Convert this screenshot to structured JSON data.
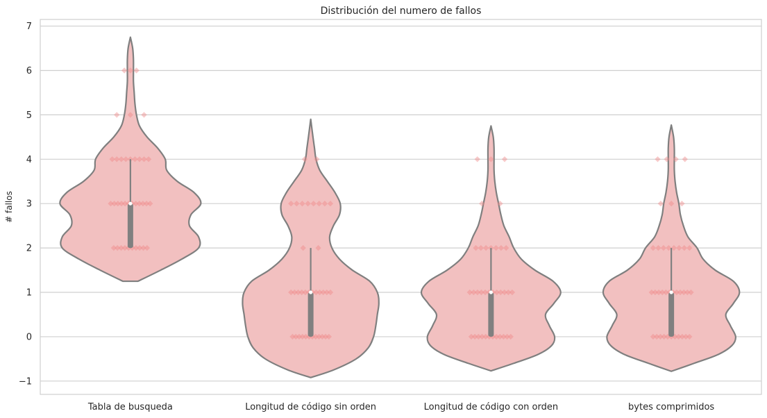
{
  "chart_data": {
    "type": "violin",
    "title": "Distribución del numero de fallos",
    "xlabel": "",
    "ylabel": "# fallos",
    "ylim": [
      -1.3,
      7.15
    ],
    "yticks": [
      -1,
      0,
      1,
      2,
      3,
      4,
      5,
      6,
      7
    ],
    "ytick_labels": [
      "−1",
      "0",
      "1",
      "2",
      "3",
      "4",
      "5",
      "6",
      "7"
    ],
    "grid": true,
    "colors": {
      "violin_fill": "#f2c0c0",
      "violin_edge": "#7f7f7f",
      "points": "#f08a8a",
      "box": "#808080",
      "median": "#ffffff",
      "grid": "#cfcfcf",
      "frame": "#cfcfcf"
    },
    "categories": [
      "Tabla de busqueda",
      "Longitud de código sin orden",
      "Longitud de código con orden",
      "bytes comprimidos"
    ],
    "violins": [
      {
        "category": "Tabla de busqueda",
        "profile": [
          [
            1.25,
            0.1
          ],
          [
            1.5,
            0.4
          ],
          [
            1.75,
            0.68
          ],
          [
            2.0,
            0.9
          ],
          [
            2.25,
            0.9
          ],
          [
            2.5,
            0.78
          ],
          [
            2.75,
            0.8
          ],
          [
            3.0,
            0.93
          ],
          [
            3.25,
            0.84
          ],
          [
            3.5,
            0.62
          ],
          [
            3.75,
            0.48
          ],
          [
            4.0,
            0.46
          ],
          [
            4.25,
            0.36
          ],
          [
            4.5,
            0.22
          ],
          [
            4.75,
            0.12
          ],
          [
            5.0,
            0.08
          ],
          [
            5.25,
            0.06
          ],
          [
            5.5,
            0.05
          ],
          [
            5.75,
            0.04
          ],
          [
            6.0,
            0.04
          ],
          [
            6.25,
            0.04
          ],
          [
            6.5,
            0.03
          ],
          [
            6.75,
            0.0
          ]
        ],
        "box": {
          "q1": 2,
          "q3": 3,
          "median": 3,
          "whisker_low": 2,
          "whisker_high": 4
        },
        "points": [
          {
            "y": 2,
            "spread": 0.22,
            "n": 10
          },
          {
            "y": 3,
            "spread": 0.26,
            "n": 12
          },
          {
            "y": 4,
            "spread": 0.24,
            "n": 9
          },
          {
            "y": 5,
            "spread": 0.18,
            "n": 3
          },
          {
            "y": 6,
            "spread": 0.08,
            "n": 3
          }
        ]
      },
      {
        "category": "Longitud de código sin orden",
        "profile": [
          [
            -0.92,
            0.0
          ],
          [
            -0.75,
            0.3
          ],
          [
            -0.5,
            0.6
          ],
          [
            -0.25,
            0.76
          ],
          [
            0.0,
            0.83
          ],
          [
            0.25,
            0.86
          ],
          [
            0.5,
            0.88
          ],
          [
            0.75,
            0.9
          ],
          [
            1.0,
            0.88
          ],
          [
            1.25,
            0.78
          ],
          [
            1.5,
            0.55
          ],
          [
            1.75,
            0.38
          ],
          [
            2.0,
            0.28
          ],
          [
            2.25,
            0.25
          ],
          [
            2.5,
            0.3
          ],
          [
            2.75,
            0.38
          ],
          [
            3.0,
            0.39
          ],
          [
            3.25,
            0.32
          ],
          [
            3.5,
            0.22
          ],
          [
            3.75,
            0.12
          ],
          [
            4.0,
            0.07
          ],
          [
            4.25,
            0.05
          ],
          [
            4.5,
            0.03
          ],
          [
            4.9,
            0.0
          ]
        ],
        "box": {
          "q1": 0,
          "q3": 1,
          "median": 1,
          "whisker_low": 0,
          "whisker_high": 2
        },
        "points": [
          {
            "y": 0,
            "spread": 0.24,
            "n": 12
          },
          {
            "y": 1,
            "spread": 0.26,
            "n": 12
          },
          {
            "y": 2,
            "spread": 0.1,
            "n": 2
          },
          {
            "y": 3,
            "spread": 0.26,
            "n": 8
          },
          {
            "y": 4,
            "spread": 0.08,
            "n": 2
          }
        ]
      },
      {
        "category": "Longitud de código con orden",
        "profile": [
          [
            -0.77,
            0.0
          ],
          [
            -0.6,
            0.3
          ],
          [
            -0.4,
            0.62
          ],
          [
            -0.2,
            0.8
          ],
          [
            0.0,
            0.84
          ],
          [
            0.25,
            0.77
          ],
          [
            0.5,
            0.72
          ],
          [
            0.75,
            0.83
          ],
          [
            1.0,
            0.92
          ],
          [
            1.25,
            0.82
          ],
          [
            1.5,
            0.58
          ],
          [
            1.75,
            0.4
          ],
          [
            2.0,
            0.3
          ],
          [
            2.25,
            0.24
          ],
          [
            2.5,
            0.17
          ],
          [
            2.75,
            0.13
          ],
          [
            3.0,
            0.1
          ],
          [
            3.25,
            0.07
          ],
          [
            3.5,
            0.05
          ],
          [
            3.75,
            0.04
          ],
          [
            4.0,
            0.04
          ],
          [
            4.25,
            0.04
          ],
          [
            4.5,
            0.03
          ],
          [
            4.75,
            0.0
          ]
        ],
        "box": {
          "q1": 0,
          "q3": 1,
          "median": 1,
          "whisker_low": 0,
          "whisker_high": 2
        },
        "points": [
          {
            "y": 0,
            "spread": 0.26,
            "n": 12
          },
          {
            "y": 1,
            "spread": 0.28,
            "n": 12
          },
          {
            "y": 2,
            "spread": 0.2,
            "n": 7
          },
          {
            "y": 3,
            "spread": 0.12,
            "n": 2
          },
          {
            "y": 4,
            "spread": 0.18,
            "n": 3
          }
        ]
      },
      {
        "category": "bytes comprimidos",
        "profile": [
          [
            -0.78,
            0.0
          ],
          [
            -0.6,
            0.3
          ],
          [
            -0.4,
            0.62
          ],
          [
            -0.2,
            0.8
          ],
          [
            0.0,
            0.85
          ],
          [
            0.25,
            0.78
          ],
          [
            0.5,
            0.72
          ],
          [
            0.75,
            0.82
          ],
          [
            1.0,
            0.9
          ],
          [
            1.25,
            0.82
          ],
          [
            1.5,
            0.58
          ],
          [
            1.75,
            0.42
          ],
          [
            2.0,
            0.34
          ],
          [
            2.25,
            0.22
          ],
          [
            2.5,
            0.16
          ],
          [
            2.75,
            0.12
          ],
          [
            3.0,
            0.1
          ],
          [
            3.25,
            0.07
          ],
          [
            3.5,
            0.05
          ],
          [
            3.75,
            0.04
          ],
          [
            4.0,
            0.04
          ],
          [
            4.25,
            0.04
          ],
          [
            4.5,
            0.03
          ],
          [
            4.77,
            0.0
          ]
        ],
        "box": {
          "q1": 0,
          "q3": 1,
          "median": 1,
          "whisker_low": 0,
          "whisker_high": 2
        },
        "points": [
          {
            "y": 0,
            "spread": 0.24,
            "n": 11
          },
          {
            "y": 1,
            "spread": 0.26,
            "n": 12
          },
          {
            "y": 2,
            "spread": 0.24,
            "n": 8
          },
          {
            "y": 3,
            "spread": 0.14,
            "n": 3
          },
          {
            "y": 4,
            "spread": 0.18,
            "n": 4
          }
        ]
      }
    ]
  }
}
